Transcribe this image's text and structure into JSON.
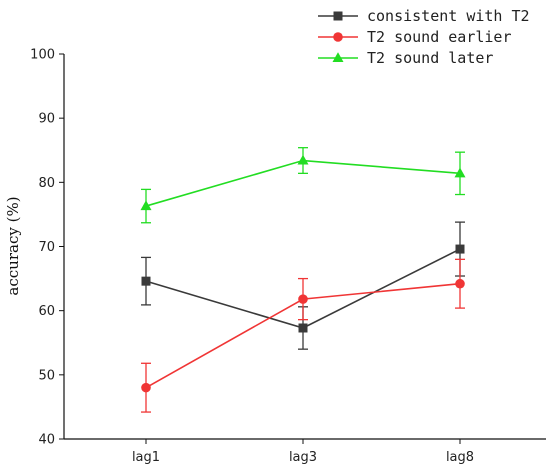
{
  "chart_data": {
    "type": "line",
    "title": "",
    "xlabel": "",
    "ylabel": "accuracy (%)",
    "categories": [
      "lag1",
      "lag3",
      "lag8"
    ],
    "ylim": [
      40,
      100
    ],
    "yticks": [
      40,
      50,
      60,
      70,
      80,
      90,
      100
    ],
    "grid": false,
    "legend_position": "top-right",
    "series": [
      {
        "name": "consistent with T2",
        "color": "#3a3a3a",
        "marker": "square",
        "values": [
          64.6,
          57.3,
          69.6
        ],
        "error": [
          3.7,
          3.3,
          4.2
        ]
      },
      {
        "name": "T2 sound earlier",
        "color": "#f03535",
        "marker": "circle",
        "values": [
          48.0,
          61.8,
          64.2
        ],
        "error": [
          3.8,
          3.2,
          3.8
        ]
      },
      {
        "name": "T2 sound later",
        "color": "#22dd22",
        "marker": "triangle",
        "values": [
          76.3,
          83.4,
          81.4
        ],
        "error": [
          2.6,
          2.0,
          3.3
        ]
      }
    ]
  }
}
